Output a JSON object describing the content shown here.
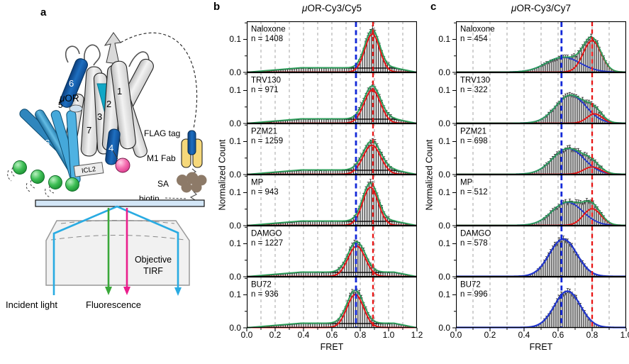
{
  "figure": {
    "panel_labels": {
      "a": "a",
      "b": "b",
      "c": "c"
    },
    "panel_a": {
      "labels": {
        "receptor_prefix": "μ",
        "receptor_rest": "OR",
        "flag": "FLAG tag",
        "fab": "M1 Fab",
        "sa": "SA",
        "biotin": "biotin",
        "icl2": "ICL2",
        "objective_line1": "Objective",
        "objective_line2": "TIRF",
        "incident": "Incident light",
        "fluorescence": "Fluorescence"
      },
      "helix_numbers": {
        "h1": "1",
        "h2": "2",
        "h3": "3",
        "h4": "4",
        "h5": "5",
        "h6_upper": "6",
        "h6_fan": "6",
        "h7": "7"
      },
      "colors": {
        "helix_gray": "#d9d9d9",
        "helix_blue": "#1565b8",
        "fan_blue": "#3f9fd0",
        "wedge_teal": "#10a7c6",
        "sphere_green": "#2fae4a",
        "sphere_pink": "#f25fa8",
        "fab_yellow": "#f6d87a",
        "sa_brown": "#8d7a68",
        "slide_blue": "#d3e6f7",
        "incident_cyan": "#29abe2",
        "fluor_green": "#3aa83a",
        "fluor_magenta": "#ea1e8c"
      }
    }
  },
  "chart_data": [
    {
      "panel": "b",
      "type": "bar",
      "title_prefix": "μ",
      "title_rest": "OR-Cy3/Cy5",
      "xlabel": "FRET",
      "ylabel": "Normalized Count",
      "xlim": [
        0,
        1.2
      ],
      "ylim": [
        0,
        0.155
      ],
      "bin_width": 0.016,
      "gridline_step": 0.1,
      "xticks": [
        0,
        0.2,
        0.4,
        0.6,
        0.8,
        1.0,
        1.2
      ],
      "xtick_labels": [
        "0.0",
        "0.2",
        "0.4",
        "0.6",
        "0.8",
        "1.0",
        "1.2"
      ],
      "yticks": [
        0,
        0.1
      ],
      "ytick_labels": [
        "0.0",
        "0.1"
      ],
      "ref_lines": [
        {
          "x": 0.77,
          "color": "#1228d8",
          "width": 2.8,
          "dash": "7,4.5"
        },
        {
          "x": 0.89,
          "color": "#e81414",
          "width": 2.3,
          "dash": "6,4.5"
        }
      ],
      "background_component": {
        "color": "#000000",
        "amplitude": 0.013,
        "ramp_start": 0.02,
        "ramp_end": 0.38,
        "fade_start": 1.04,
        "fade_end": 1.19
      },
      "subplots": [
        {
          "ligand": "Naloxone",
          "n": 1408,
          "n_label": "n = 1408",
          "total_color": "#2e9e5b",
          "components": [
            {
              "color": "#e81414",
              "width": 1.9,
              "center": 0.885,
              "sigma": 0.052,
              "amplitude": 0.115
            }
          ],
          "peak_fret": 0.89,
          "peak_height": 0.13
        },
        {
          "ligand": "TRV130",
          "n": 971,
          "n_label": "n = 971",
          "total_color": "#2e9e5b",
          "components": [
            {
              "color": "#e81414",
              "width": 1.9,
              "center": 0.885,
              "sigma": 0.058,
              "amplitude": 0.1
            }
          ],
          "peak_fret": 0.89,
          "peak_height": 0.115
        },
        {
          "ligand": "PZM21",
          "n": 1259,
          "n_label": "n = 1259",
          "total_color": "#2e9e5b",
          "components": [
            {
              "color": "#e81414",
              "width": 1.9,
              "center": 0.882,
              "sigma": 0.062,
              "amplitude": 0.088
            }
          ],
          "peak_fret": 0.88,
          "peak_height": 0.1
        },
        {
          "ligand": "MP",
          "n": 943,
          "n_label": "n = 943",
          "total_color": "#2e9e5b",
          "components": [
            {
              "color": "#e81414",
              "width": 1.9,
              "center": 0.872,
              "sigma": 0.055,
              "amplitude": 0.115
            }
          ],
          "peak_fret": 0.87,
          "peak_height": 0.13
        },
        {
          "ligand": "DAMGO",
          "n": 1227,
          "n_label": "n = 1227",
          "total_color": "#2e9e5b",
          "components": [
            {
              "color": "#e81414",
              "width": 1.9,
              "center": 0.775,
              "sigma": 0.06,
              "amplitude": 0.092
            }
          ],
          "peak_fret": 0.78,
          "peak_height": 0.107
        },
        {
          "ligand": "BU72",
          "n": 936,
          "n_label": "n = 936",
          "total_color": "#2e9e5b",
          "components": [
            {
              "color": "#e81414",
              "width": 1.9,
              "center": 0.765,
              "sigma": 0.058,
              "amplitude": 0.1
            }
          ],
          "peak_fret": 0.77,
          "peak_height": 0.113
        }
      ]
    },
    {
      "panel": "c",
      "type": "bar",
      "title_prefix": "μ",
      "title_rest": "OR-Cy3/Cy7",
      "xlabel": "FRET",
      "ylabel": "Normalized Count",
      "xlim": [
        0,
        1.0
      ],
      "ylim": [
        0,
        0.155
      ],
      "bin_width": 0.0125,
      "gridline_step": 0.1,
      "xticks": [
        0,
        0.2,
        0.4,
        0.6,
        0.8,
        1.0
      ],
      "xtick_labels": [
        "0.0",
        "0.2",
        "0.4",
        "0.6",
        "0.8",
        "1.0"
      ],
      "yticks": [
        0,
        0.1
      ],
      "ytick_labels": [
        "0.0",
        "0.1"
      ],
      "ref_lines": [
        {
          "x": 0.62,
          "color": "#1228d8",
          "width": 2.8,
          "dash": "7,4.5"
        },
        {
          "x": 0.8,
          "color": "#e81414",
          "width": 2.3,
          "dash": "6,4.5"
        }
      ],
      "background_component": null,
      "subplots": [
        {
          "ligand": "Naloxone",
          "n": 454,
          "n_label": "n = 454",
          "total_color": "#2e9e5b",
          "components": [
            {
              "color": "#2337cc",
              "width": 1.9,
              "center": 0.63,
              "sigma": 0.1,
              "amplitude": 0.045
            },
            {
              "color": "#e81414",
              "width": 1.9,
              "center": 0.8,
              "sigma": 0.052,
              "amplitude": 0.095
            }
          ],
          "peak_fret": 0.78,
          "peak_height": 0.127
        },
        {
          "ligand": "TRV130",
          "n": 322,
          "n_label": "n = 322",
          "total_color": "#2e9e5b",
          "components": [
            {
              "color": "#2337cc",
              "width": 1.9,
              "center": 0.675,
              "sigma": 0.088,
              "amplitude": 0.085
            },
            {
              "color": "#e81414",
              "width": 1.9,
              "center": 0.815,
              "sigma": 0.045,
              "amplitude": 0.028
            }
          ],
          "peak_fret": 0.69,
          "peak_height": 0.095
        },
        {
          "ligand": "PZM21",
          "n": 698,
          "n_label": "n = 698",
          "total_color": "#2e9e5b",
          "components": [
            {
              "color": "#2337cc",
              "width": 1.9,
              "center": 0.66,
              "sigma": 0.092,
              "amplitude": 0.078
            },
            {
              "color": "#e81414",
              "width": 1.9,
              "center": 0.8,
              "sigma": 0.05,
              "amplitude": 0.022
            }
          ],
          "peak_fret": 0.67,
          "peak_height": 0.085
        },
        {
          "ligand": "MP",
          "n": 512,
          "n_label": "n = 512",
          "total_color": "#2e9e5b",
          "components": [
            {
              "color": "#2337cc",
              "width": 1.9,
              "center": 0.655,
              "sigma": 0.09,
              "amplitude": 0.07
            },
            {
              "color": "#e81414",
              "width": 1.9,
              "center": 0.8,
              "sigma": 0.052,
              "amplitude": 0.05
            }
          ],
          "peak_fret": 0.73,
          "peak_height": 0.096
        },
        {
          "ligand": "DAMGO",
          "n": 578,
          "n_label": "n = 578",
          "total_color": null,
          "components": [
            {
              "color": "#2337cc",
              "width": 2.3,
              "center": 0.63,
              "sigma": 0.08,
              "amplitude": 0.113
            }
          ],
          "peak_fret": 0.63,
          "peak_height": 0.113
        },
        {
          "ligand": "BU72",
          "n": 996,
          "n_label": "n = 996",
          "total_color": null,
          "components": [
            {
              "color": "#2337cc",
              "width": 2.3,
              "center": 0.655,
              "sigma": 0.076,
              "amplitude": 0.11
            }
          ],
          "peak_fret": 0.65,
          "peak_height": 0.11
        }
      ]
    }
  ]
}
